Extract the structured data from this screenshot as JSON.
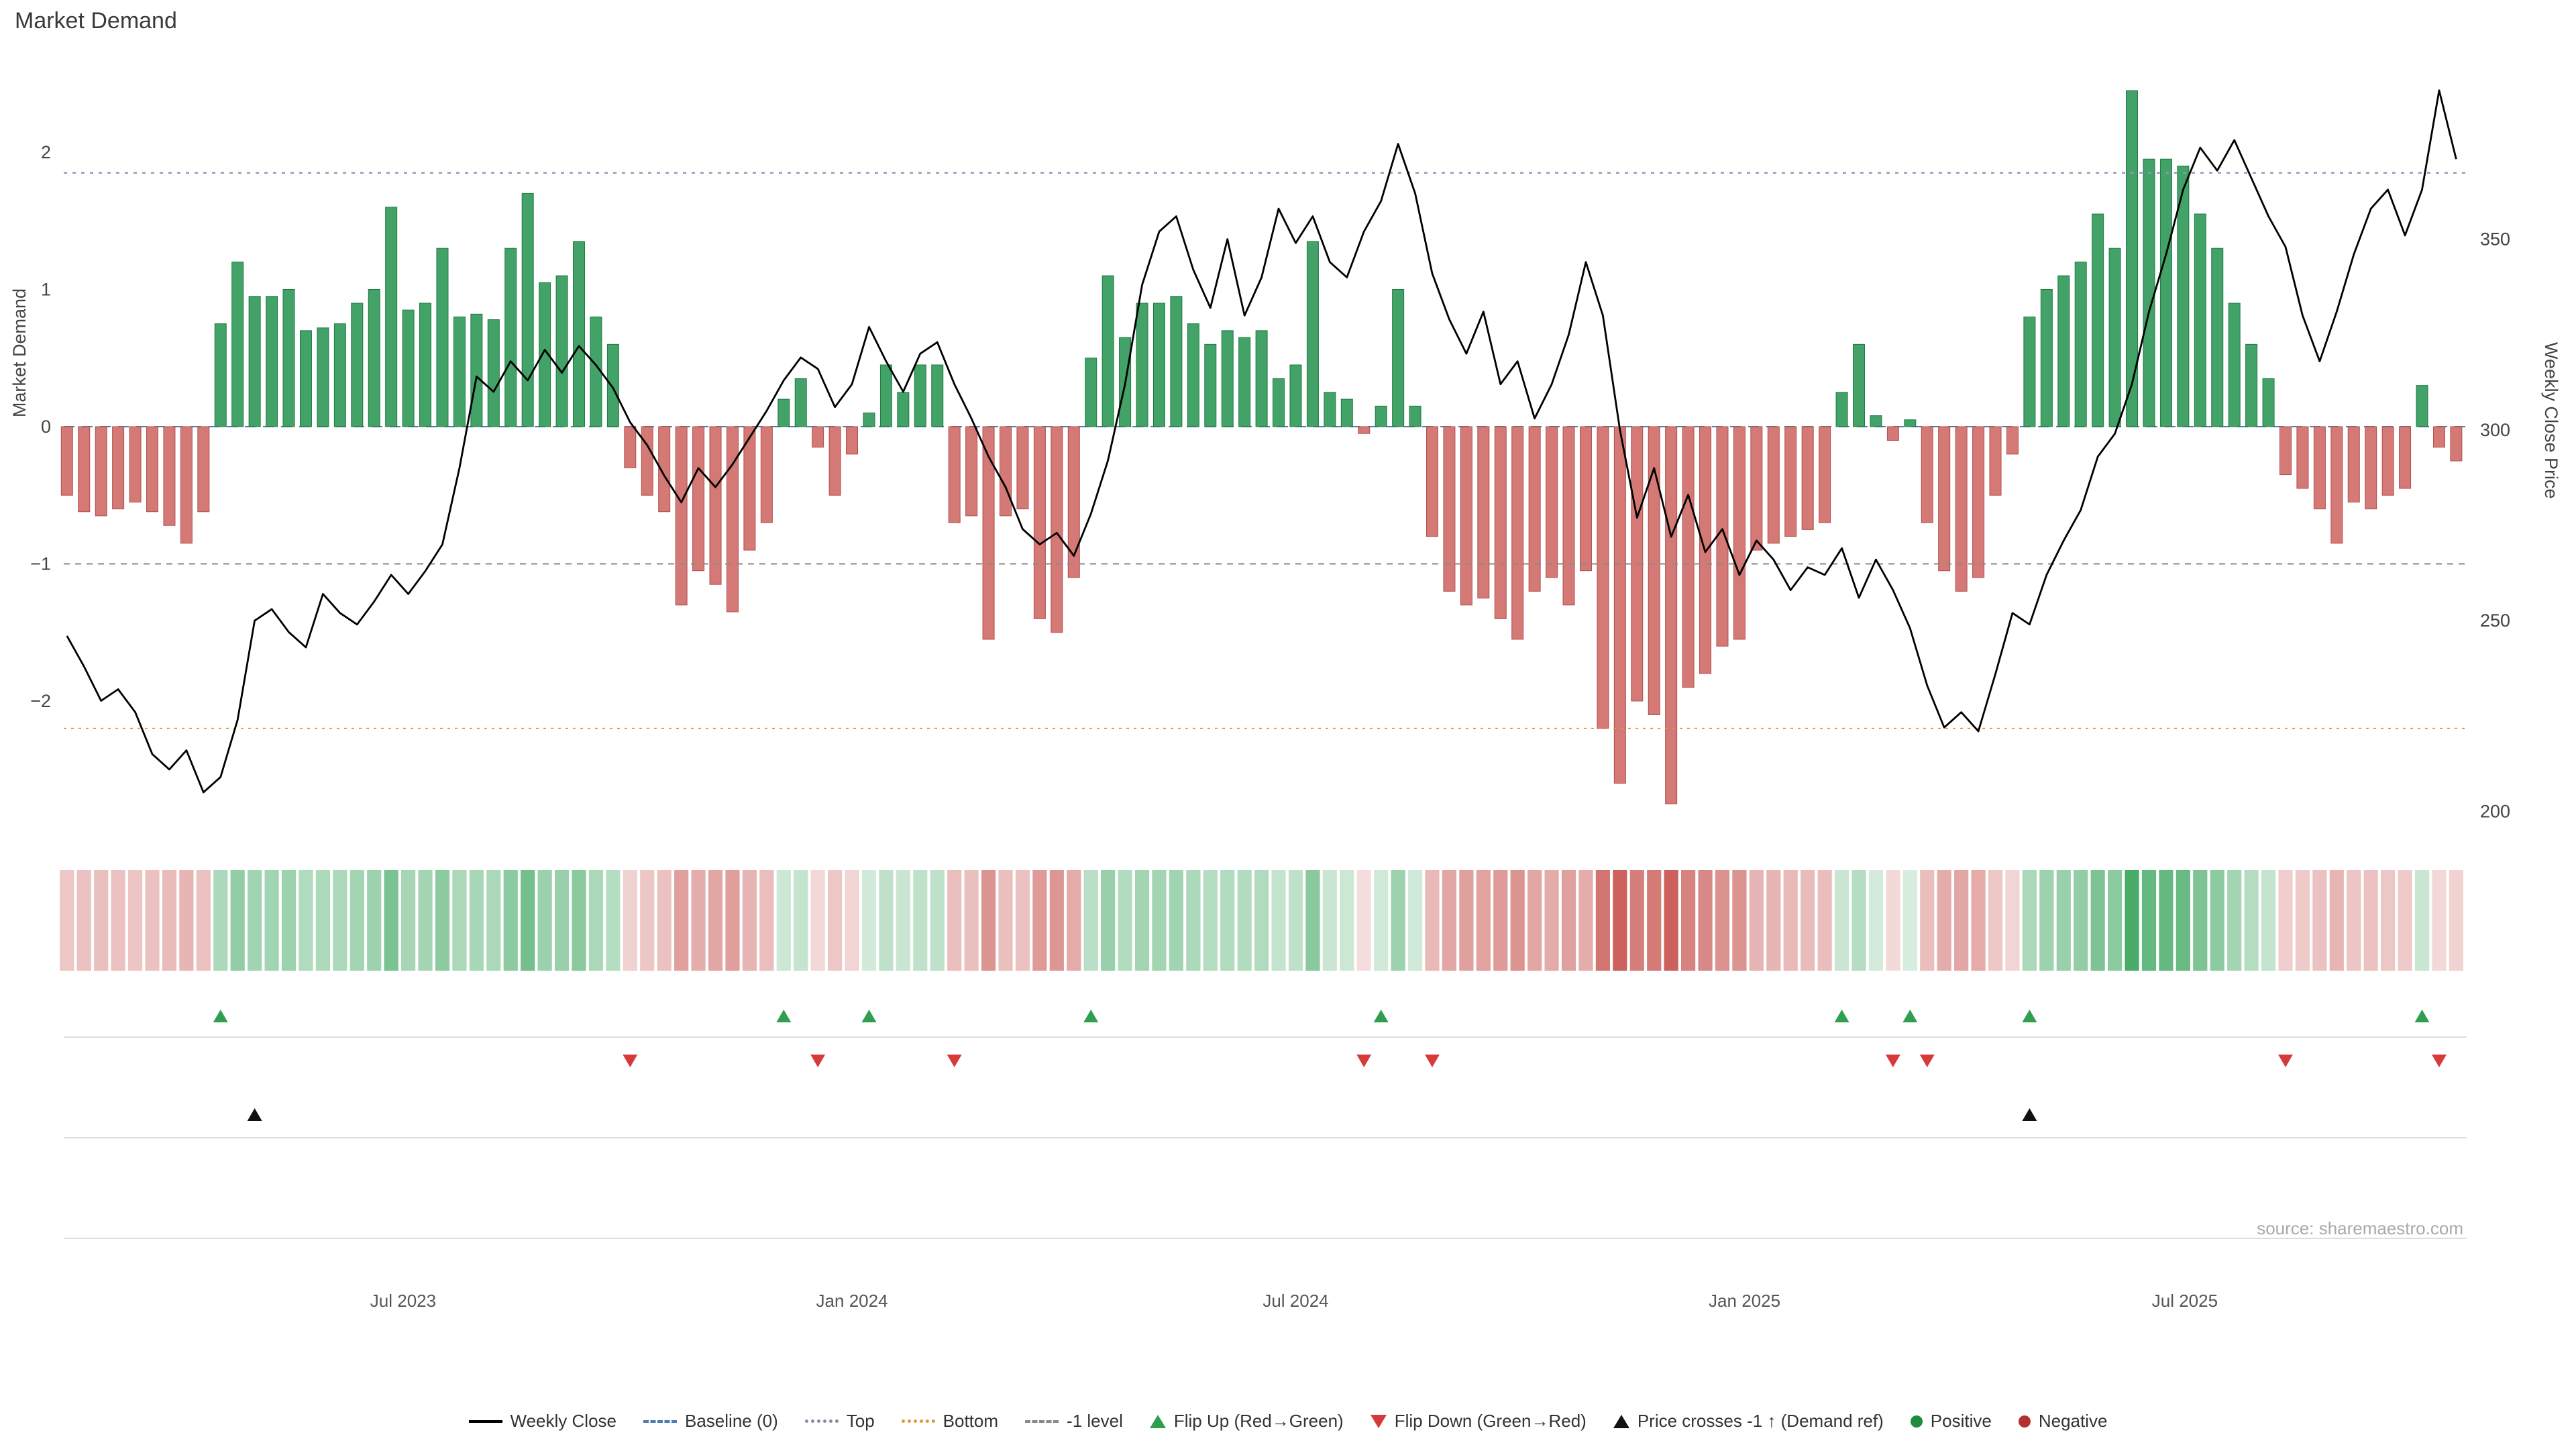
{
  "title": "Market Demand",
  "source": "source: sharemaestro.com",
  "axes": {
    "left_label": "Market Demand",
    "right_label": "Weekly Close Price",
    "left_ticks": [
      "2",
      "1",
      "0",
      "−1",
      "−2"
    ],
    "right_ticks": [
      "350",
      "300",
      "250",
      "200"
    ],
    "x_tick_labels": [
      "Jul 2023",
      "Jan 2024",
      "Jul 2024",
      "Jan 2025",
      "Jul 2025"
    ]
  },
  "colors": {
    "positive": "#2e9858",
    "positive_edge": "#1f7a42",
    "negative": "#cf6a66",
    "negative_edge": "#b14f4b",
    "price_line": "#000000",
    "baseline": "#4d7fae",
    "top_line": "#9395b5",
    "bottom_line": "#dd9a3c",
    "minus1_line": "#8a8a8a",
    "flip_up": "#2f9e4f",
    "flip_down": "#d63a3a",
    "price_cross": "#111111",
    "heat_positive": "#2a9d4f",
    "heat_negative": "#c6504c"
  },
  "legend": {
    "items": [
      {
        "label": "Weekly Close"
      },
      {
        "label": "Baseline (0)"
      },
      {
        "label": "Top"
      },
      {
        "label": "Bottom"
      },
      {
        "label": "-1 level"
      },
      {
        "label": "Flip Up (Red→Green)"
      },
      {
        "label": "Flip Down (Green→Red)"
      },
      {
        "label": "Price crosses -1 ↑ (Demand ref)"
      },
      {
        "label": "Positive"
      },
      {
        "label": "Negative"
      }
    ]
  },
  "chart_data": {
    "type": "bar+line",
    "title": "Market Demand",
    "x_unit": "week_index",
    "grid": false,
    "legend_position": "bottom-center",
    "left_ylim": [
      -3.05,
      2.7
    ],
    "right_ylim": [
      191,
      398
    ],
    "levels": {
      "baseline": 0,
      "top": 1.85,
      "bottom": -2.2,
      "minus1": -1
    },
    "x_ticks": [
      {
        "week": 19.7,
        "label": "Jul 2023"
      },
      {
        "week": 46.0,
        "label": "Jan 2024"
      },
      {
        "week": 72.0,
        "label": "Jul 2024"
      },
      {
        "week": 98.3,
        "label": "Jan 2025"
      },
      {
        "week": 124.1,
        "label": "Jul 2025"
      }
    ],
    "series": [
      {
        "name": "Market Demand",
        "type": "bar",
        "axis": "left",
        "values": [
          -0.5,
          -0.62,
          -0.65,
          -0.6,
          -0.55,
          -0.62,
          -0.72,
          -0.85,
          -0.62,
          0.75,
          1.2,
          0.95,
          0.95,
          1.0,
          0.7,
          0.72,
          0.75,
          0.9,
          1.0,
          1.6,
          0.85,
          0.9,
          1.3,
          0.8,
          0.82,
          0.78,
          1.3,
          1.7,
          1.05,
          1.1,
          1.35,
          0.8,
          0.6,
          -0.3,
          -0.5,
          -0.62,
          -1.3,
          -1.05,
          -1.15,
          -1.35,
          -0.9,
          -0.7,
          0.2,
          0.35,
          -0.15,
          -0.5,
          -0.2,
          0.1,
          0.45,
          0.25,
          0.45,
          0.45,
          -0.7,
          -0.65,
          -1.55,
          -0.65,
          -0.6,
          -1.4,
          -1.5,
          -1.1,
          0.5,
          1.1,
          0.65,
          0.9,
          0.9,
          0.95,
          0.75,
          0.6,
          0.7,
          0.65,
          0.7,
          0.35,
          0.45,
          1.35,
          0.25,
          0.2,
          -0.05,
          0.15,
          1.0,
          0.15,
          -0.8,
          -1.2,
          -1.3,
          -1.25,
          -1.4,
          -1.55,
          -1.2,
          -1.1,
          -1.3,
          -1.05,
          -2.2,
          -2.6,
          -2.0,
          -2.1,
          -2.75,
          -1.9,
          -1.8,
          -1.6,
          -1.55,
          -0.9,
          -0.85,
          -0.8,
          -0.75,
          -0.7,
          0.25,
          0.6,
          0.08,
          -0.1,
          0.05,
          -0.7,
          -1.05,
          -1.2,
          -1.1,
          -0.5,
          -0.2,
          0.8,
          1.0,
          1.1,
          1.2,
          1.55,
          1.3,
          2.45,
          1.95,
          1.95,
          1.9,
          1.55,
          1.3,
          0.9,
          0.6,
          0.35,
          -0.35,
          -0.45,
          -0.6,
          -0.85,
          -0.55,
          -0.6,
          -0.5,
          -0.45,
          0.3,
          -0.15,
          -0.25
        ]
      },
      {
        "name": "Weekly Close",
        "type": "line",
        "axis": "right",
        "values": [
          246,
          238,
          229,
          232,
          226,
          215,
          211,
          216,
          205,
          209,
          224,
          250,
          253,
          247,
          243,
          257,
          252,
          249,
          255,
          262,
          257,
          263,
          270,
          290,
          314,
          310,
          318,
          313,
          321,
          315,
          322,
          317,
          311,
          302,
          296,
          288,
          281,
          290,
          285,
          291,
          298,
          305,
          313,
          319,
          316,
          306,
          312,
          327,
          318,
          310,
          320,
          323,
          312,
          303,
          293,
          285,
          274,
          270,
          273,
          267,
          278,
          292,
          312,
          338,
          352,
          356,
          342,
          332,
          350,
          330,
          340,
          358,
          349,
          356,
          344,
          340,
          352,
          360,
          375,
          362,
          341,
          329,
          320,
          331,
          312,
          318,
          303,
          312,
          325,
          344,
          330,
          300,
          277,
          290,
          272,
          283,
          268,
          274,
          262,
          271,
          266,
          258,
          264,
          262,
          269,
          256,
          266,
          258,
          248,
          233,
          222,
          226,
          221,
          236,
          252,
          249,
          262,
          271,
          279,
          293,
          299,
          312,
          331,
          346,
          363,
          374,
          368,
          376,
          366,
          356,
          348,
          330,
          318,
          331,
          346,
          358,
          363,
          351,
          363,
          389,
          371
        ]
      }
    ],
    "markers": {
      "flip_up_weeks": [
        9,
        42,
        47,
        60,
        77,
        104,
        108,
        115,
        138
      ],
      "flip_down_weeks": [
        33,
        44,
        52,
        76,
        80,
        107,
        109,
        130,
        139
      ],
      "price_cross_weeks": [
        11,
        115
      ]
    }
  }
}
